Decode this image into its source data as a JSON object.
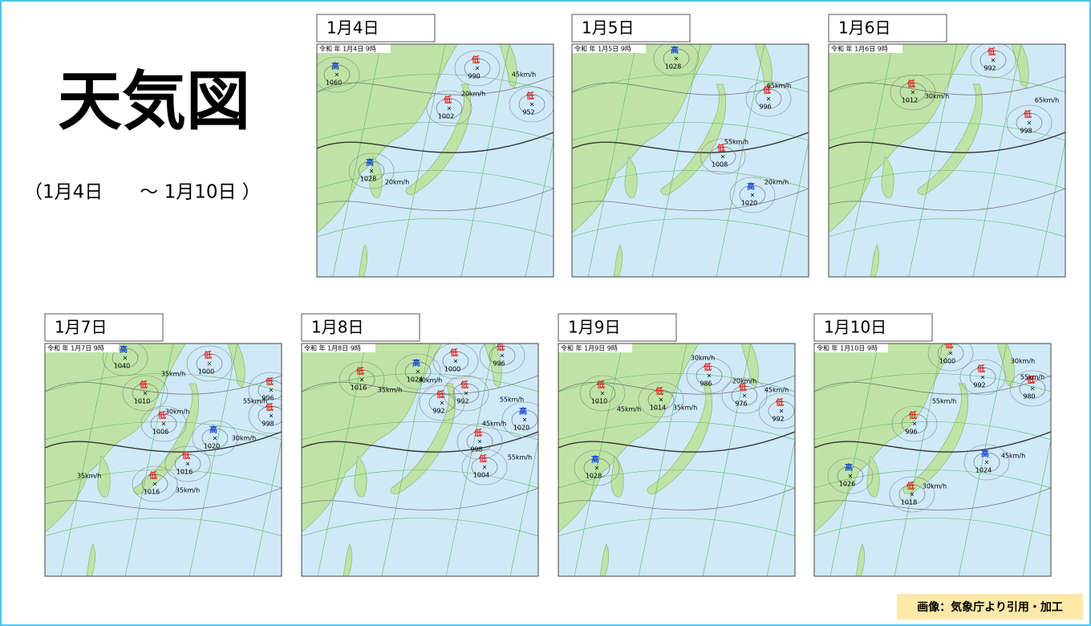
{
  "title": "天気図",
  "subtitle": "（1月4日　　～ 1月10日 ）",
  "credit": "画像：気象庁より引用・加工",
  "maps": [
    {
      "label": "1月4日",
      "stamp": "令和 年 1月4日 9時",
      "centers": [
        {
          "kind": "高",
          "value": "1060",
          "color": "#1a4fd6"
        },
        {
          "kind": "低",
          "value": "990",
          "color": "#e0201a"
        },
        {
          "kind": "低",
          "value": "1002",
          "color": "#e0201a"
        },
        {
          "kind": "低",
          "value": "952",
          "color": "#e0201a"
        },
        {
          "kind": "高",
          "value": "1028",
          "color": "#1a4fd6"
        }
      ],
      "speeds": [
        "20km/h",
        "45km/h",
        "20km/h"
      ]
    },
    {
      "label": "1月5日",
      "stamp": "令和 年 1月5日 9時",
      "centers": [
        {
          "kind": "高",
          "value": "1028",
          "color": "#1a4fd6"
        },
        {
          "kind": "低",
          "value": "996",
          "color": "#e0201a"
        },
        {
          "kind": "低",
          "value": "1008",
          "color": "#e0201a"
        },
        {
          "kind": "高",
          "value": "1020",
          "color": "#1a4fd6"
        }
      ],
      "speeds": [
        "65km/h",
        "55km/h",
        "20km/h"
      ]
    },
    {
      "label": "1月6日",
      "stamp": "令和 年 1月6日 9時",
      "centers": [
        {
          "kind": "低",
          "value": "992",
          "color": "#e0201a"
        },
        {
          "kind": "低",
          "value": "1012",
          "color": "#e0201a"
        },
        {
          "kind": "低",
          "value": "998",
          "color": "#e0201a"
        }
      ],
      "speeds": [
        "30km/h",
        "65km/h"
      ]
    },
    {
      "label": "1月7日",
      "stamp": "令和 年 1月7日 9時",
      "centers": [
        {
          "kind": "高",
          "value": "1040",
          "color": "#1a4fd6"
        },
        {
          "kind": "低",
          "value": "1000",
          "color": "#e0201a"
        },
        {
          "kind": "低",
          "value": "1010",
          "color": "#e0201a"
        },
        {
          "kind": "低",
          "value": "1006",
          "color": "#e0201a"
        },
        {
          "kind": "高",
          "value": "1020",
          "color": "#1a4fd6"
        },
        {
          "kind": "低",
          "value": "1016",
          "color": "#e0201a"
        },
        {
          "kind": "低",
          "value": "1016",
          "color": "#e0201a"
        },
        {
          "kind": "低",
          "value": "996",
          "color": "#e0201a"
        },
        {
          "kind": "低",
          "value": "998",
          "color": "#e0201a"
        }
      ],
      "speeds": [
        "35km/h",
        "30km/h",
        "35km/h",
        "30km/h",
        "55km/h",
        "35km/h"
      ]
    },
    {
      "label": "1月8日",
      "stamp": "令和 年 1月8日 9時",
      "centers": [
        {
          "kind": "低",
          "value": "1016",
          "color": "#e0201a"
        },
        {
          "kind": "高",
          "value": "1024",
          "color": "#1a4fd6"
        },
        {
          "kind": "低",
          "value": "1000",
          "color": "#e0201a"
        },
        {
          "kind": "低",
          "value": "996",
          "color": "#e0201a"
        },
        {
          "kind": "低",
          "value": "992",
          "color": "#e0201a"
        },
        {
          "kind": "低",
          "value": "992",
          "color": "#e0201a"
        },
        {
          "kind": "低",
          "value": "998",
          "color": "#e0201a"
        },
        {
          "kind": "高",
          "value": "1020",
          "color": "#1a4fd6"
        },
        {
          "kind": "低",
          "value": "1004",
          "color": "#e0201a"
        }
      ],
      "speeds": [
        "35km/h",
        "30km/h",
        "45km/h",
        "55km/h",
        "55km/h"
      ]
    },
    {
      "label": "1月9日",
      "stamp": "令和 年 1月9日 9時",
      "centers": [
        {
          "kind": "低",
          "value": "1010",
          "color": "#e0201a"
        },
        {
          "kind": "低",
          "value": "1014",
          "color": "#e0201a"
        },
        {
          "kind": "低",
          "value": "986",
          "color": "#e0201a"
        },
        {
          "kind": "低",
          "value": "976",
          "color": "#e0201a"
        },
        {
          "kind": "低",
          "value": "992",
          "color": "#e0201a"
        },
        {
          "kind": "高",
          "value": "1028",
          "color": "#1a4fd6"
        }
      ],
      "speeds": [
        "45km/h",
        "35km/h",
        "20km/h",
        "45km/h",
        "30km/h"
      ]
    },
    {
      "label": "1月10日",
      "stamp": "令和 年 1月10日 9時",
      "centers": [
        {
          "kind": "低",
          "value": "1000",
          "color": "#e0201a"
        },
        {
          "kind": "低",
          "value": "992",
          "color": "#e0201a"
        },
        {
          "kind": "低",
          "value": "980",
          "color": "#e0201a"
        },
        {
          "kind": "低",
          "value": "996",
          "color": "#e0201a"
        },
        {
          "kind": "高",
          "value": "1024",
          "color": "#1a4fd6"
        },
        {
          "kind": "高",
          "value": "1026",
          "color": "#1a4fd6"
        },
        {
          "kind": "低",
          "value": "1018",
          "color": "#e0201a"
        }
      ],
      "speeds": [
        "30km/h",
        "55km/h",
        "55km/h",
        "45km/h",
        "30km/h"
      ]
    }
  ]
}
